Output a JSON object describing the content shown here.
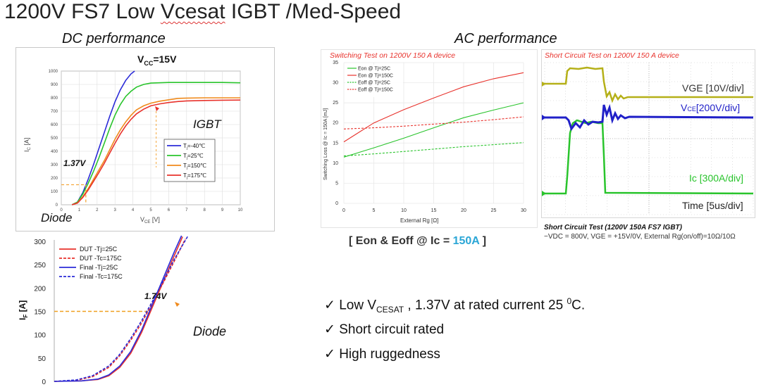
{
  "title_parts": [
    "1200V FS7 Low ",
    "Vcesat",
    " IGBT /Med-Speed"
  ],
  "section_dc": "DC performance",
  "section_ac": "AC performance",
  "colors": {
    "red": "#e8322c",
    "green": "#29c42c",
    "blue": "#2b2bd8",
    "orange": "#f08a1c",
    "orange_dash": "#f5a83c",
    "cyan": "#2aa6d6",
    "scope_bg": "#ffffff"
  },
  "chart_data": [
    {
      "id": "igbt-output",
      "type": "line",
      "title": "VCC=15V",
      "title_main": "V",
      "title_sub": "CC",
      "title_rest": "=15V",
      "xlabel_main": "V",
      "xlabel_sub": "CE",
      "xlabel_rest": " [V]",
      "ylabel_main": "I",
      "ylabel_sub": "C",
      "ylabel_rest": " [A]",
      "xlim": [
        0,
        10
      ],
      "ylim": [
        0,
        1000
      ],
      "xticks": [
        0,
        1,
        2,
        3,
        4,
        5,
        6,
        7,
        8,
        9,
        10
      ],
      "yticks": [
        0,
        100,
        200,
        300,
        400,
        500,
        600,
        700,
        800,
        900,
        1000
      ],
      "grid": true,
      "legend_position": "center-right",
      "annotations": {
        "voltage_label": "1.37V",
        "voltage_x": 1.37,
        "voltage_y": 150,
        "igbt_label": "IGBT",
        "diode_label": "Diode"
      },
      "series": [
        {
          "name": "Tj=-40℃",
          "name_main": "T",
          "name_sub": "j",
          "name_rest": "=-40℃",
          "color": "#2b2bd8",
          "points": [
            [
              0.6,
              0
            ],
            [
              0.9,
              20
            ],
            [
              1.2,
              90
            ],
            [
              1.5,
              190
            ],
            [
              1.8,
              300
            ],
            [
              2.1,
              420
            ],
            [
              2.4,
              540
            ],
            [
              2.7,
              660
            ],
            [
              3.0,
              770
            ],
            [
              3.3,
              860
            ],
            [
              3.6,
              930
            ],
            [
              3.9,
              980
            ],
            [
              4.1,
              1000
            ]
          ]
        },
        {
          "name": "Tj=25℃",
          "name_main": "T",
          "name_sub": "j",
          "name_rest": "=25℃",
          "color": "#29c42c",
          "points": [
            [
              0.6,
              0
            ],
            [
              0.9,
              20
            ],
            [
              1.2,
              80
            ],
            [
              1.5,
              160
            ],
            [
              1.8,
              250
            ],
            [
              2.1,
              350
            ],
            [
              2.4,
              460
            ],
            [
              2.7,
              570
            ],
            [
              3.0,
              670
            ],
            [
              3.3,
              750
            ],
            [
              3.6,
              810
            ],
            [
              3.9,
              850
            ],
            [
              4.2,
              880
            ],
            [
              4.6,
              900
            ],
            [
              5.0,
              910
            ],
            [
              6.0,
              915
            ],
            [
              7.0,
              915
            ],
            [
              8.0,
              915
            ],
            [
              9.0,
              915
            ],
            [
              10.0,
              912
            ]
          ]
        },
        {
          "name": "Tj=150℃",
          "name_main": "T",
          "name_sub": "j",
          "name_rest": "=150℃",
          "color": "#f08a1c",
          "points": [
            [
              0.6,
              0
            ],
            [
              0.9,
              15
            ],
            [
              1.2,
              60
            ],
            [
              1.5,
              120
            ],
            [
              1.8,
              190
            ],
            [
              2.1,
              260
            ],
            [
              2.4,
              330
            ],
            [
              2.7,
              410
            ],
            [
              3.0,
              490
            ],
            [
              3.3,
              560
            ],
            [
              3.6,
              620
            ],
            [
              3.9,
              670
            ],
            [
              4.2,
              710
            ],
            [
              4.6,
              740
            ],
            [
              5.0,
              760
            ],
            [
              5.5,
              775
            ],
            [
              6.0,
              785
            ],
            [
              6.5,
              795
            ],
            [
              7.0,
              798
            ],
            [
              8.0,
              800
            ],
            [
              9.0,
              800
            ],
            [
              10.0,
              800
            ]
          ]
        },
        {
          "name": "Tj=175℃",
          "name_main": "T",
          "name_sub": "j",
          "name_rest": "=175℃",
          "color": "#e8322c",
          "points": [
            [
              0.6,
              0
            ],
            [
              0.9,
              12
            ],
            [
              1.2,
              55
            ],
            [
              1.5,
              110
            ],
            [
              1.8,
              175
            ],
            [
              2.1,
              240
            ],
            [
              2.4,
              310
            ],
            [
              2.7,
              385
            ],
            [
              3.0,
              460
            ],
            [
              3.3,
              530
            ],
            [
              3.6,
              590
            ],
            [
              3.9,
              640
            ],
            [
              4.2,
              680
            ],
            [
              4.6,
              715
            ],
            [
              5.0,
              740
            ],
            [
              5.5,
              755
            ],
            [
              6.0,
              765
            ],
            [
              6.5,
              772
            ],
            [
              7.0,
              777
            ],
            [
              8.0,
              780
            ],
            [
              9.0,
              782
            ],
            [
              10.0,
              783
            ]
          ]
        }
      ]
    },
    {
      "id": "diode-forward",
      "type": "line",
      "ylabel_main": "I",
      "ylabel_sub": "F",
      "ylabel_rest": " [A]",
      "xlim": [
        0,
        4
      ],
      "ylim": [
        0,
        300
      ],
      "yticks": [
        0,
        50,
        100,
        150,
        200,
        250,
        300
      ],
      "grid": false,
      "legend_position": "top-left",
      "annotations": {
        "voltage_label": "1.74V",
        "diode_label": "Diode"
      },
      "series": [
        {
          "name": "DUT -Tj=25C",
          "color": "#e8322c",
          "dash": false,
          "points": [
            [
              0,
              0
            ],
            [
              0.5,
              1
            ],
            [
              0.8,
              4
            ],
            [
              1.0,
              12
            ],
            [
              1.2,
              30
            ],
            [
              1.4,
              60
            ],
            [
              1.6,
              105
            ],
            [
              1.8,
              160
            ],
            [
              2.0,
              215
            ],
            [
              2.2,
              270
            ],
            [
              2.35,
              310
            ]
          ]
        },
        {
          "name": "DUT -Tc=175C",
          "color": "#e8322c",
          "dash": true,
          "points": [
            [
              0,
              0
            ],
            [
              0.4,
              2
            ],
            [
              0.7,
              10
            ],
            [
              1.0,
              30
            ],
            [
              1.2,
              55
            ],
            [
              1.4,
              88
            ],
            [
              1.6,
              125
            ],
            [
              1.8,
              168
            ],
            [
              2.0,
              212
            ],
            [
              2.2,
              258
            ],
            [
              2.4,
              305
            ]
          ]
        },
        {
          "name": "Final -Tj=25C",
          "color": "#2b2bd8",
          "dash": false,
          "points": [
            [
              0,
              0
            ],
            [
              0.5,
              1
            ],
            [
              0.8,
              5
            ],
            [
              1.0,
              14
            ],
            [
              1.2,
              33
            ],
            [
              1.4,
              64
            ],
            [
              1.6,
              110
            ],
            [
              1.8,
              166
            ],
            [
              2.0,
              222
            ],
            [
              2.2,
              278
            ],
            [
              2.33,
              312
            ]
          ]
        },
        {
          "name": "Final -Tc=175C",
          "color": "#2b2bd8",
          "dash": true,
          "points": [
            [
              0,
              0
            ],
            [
              0.4,
              3
            ],
            [
              0.7,
              12
            ],
            [
              1.0,
              33
            ],
            [
              1.2,
              58
            ],
            [
              1.4,
              92
            ],
            [
              1.6,
              130
            ],
            [
              1.8,
              172
            ],
            [
              2.0,
              216
            ],
            [
              2.2,
              262
            ],
            [
              2.45,
              312
            ]
          ]
        }
      ]
    },
    {
      "id": "switching-loss",
      "type": "line",
      "title": "Switching Test on 1200V 150 A device",
      "xlabel": "External Rg [Ω]",
      "ylabel": "Switching Loss @ Ic = 150A [mJ]",
      "xlim": [
        0,
        30
      ],
      "ylim": [
        0,
        35
      ],
      "xticks": [
        0,
        5,
        10,
        15,
        20,
        25,
        30
      ],
      "yticks": [
        0,
        5,
        10,
        15,
        20,
        25,
        30,
        35
      ],
      "grid": true,
      "legend_position": "top-left",
      "series": [
        {
          "name": "Eon @ Tj=25C",
          "color": "#29c42c",
          "dash": false,
          "points": [
            [
              0,
              11.5
            ],
            [
              5,
              13.8
            ],
            [
              10,
              16.2
            ],
            [
              15,
              18.8
            ],
            [
              20,
              21.3
            ],
            [
              25,
              23.2
            ],
            [
              30,
              25.0
            ]
          ]
        },
        {
          "name": "Eon @ Tj=150C",
          "color": "#e8322c",
          "dash": false,
          "points": [
            [
              0,
              15.3
            ],
            [
              5,
              20.0
            ],
            [
              10,
              23.3
            ],
            [
              15,
              26.2
            ],
            [
              20,
              29.0
            ],
            [
              25,
              31.0
            ],
            [
              30,
              32.5
            ]
          ]
        },
        {
          "name": "Eoff @ Tj=25C",
          "color": "#29c42c",
          "dash": true,
          "points": [
            [
              0,
              11.8
            ],
            [
              5,
              12.3
            ],
            [
              10,
              12.9
            ],
            [
              15,
              13.5
            ],
            [
              20,
              14.1
            ],
            [
              25,
              14.6
            ],
            [
              30,
              15.1
            ]
          ]
        },
        {
          "name": "Eoff @ Tj=150C",
          "color": "#e8322c",
          "dash": true,
          "points": [
            [
              0,
              18.5
            ],
            [
              5,
              18.8
            ],
            [
              10,
              19.2
            ],
            [
              15,
              19.7
            ],
            [
              20,
              20.2
            ],
            [
              25,
              20.8
            ],
            [
              30,
              21.5
            ]
          ]
        }
      ]
    },
    {
      "id": "short-circuit-scope",
      "type": "line",
      "title": "Short Circuit Test on 1200V 150 A device",
      "grid": true,
      "traces": [
        {
          "name": "VGE [10V/div]",
          "color": "#b5b018"
        },
        {
          "name": "VCE[200V/div]",
          "name_main": "V",
          "name_sub": "CE",
          "name_rest": "[200V/div]",
          "color": "#2020c8"
        },
        {
          "name": "Ic [300A/div]",
          "color": "#29c42c"
        },
        {
          "name": "Time [5us/div]",
          "color": "#222222"
        }
      ]
    }
  ],
  "eon_caption": {
    "text": "[ Eon & Eoff @ Ic = ",
    "highlight": "150A",
    "end": " ]"
  },
  "sc_caption": {
    "line1": "Short Circuit Test (1200V 150A FS7 IGBT)",
    "line2": "−VDC = 800V, VGE = +15V/0V, External Rg(on/off)=10Ω/10Ω"
  },
  "bullets": {
    "b1": {
      "check": "✓",
      "pre": "Low V",
      "sub": "CESAT",
      "mid": " , 1.37V at rated current 25 ",
      "sup": "0",
      "post": "C."
    },
    "b2": {
      "check": "✓",
      "text": "Short circuit rated"
    },
    "b3": {
      "check": "✓",
      "text": "High ruggedness"
    }
  }
}
